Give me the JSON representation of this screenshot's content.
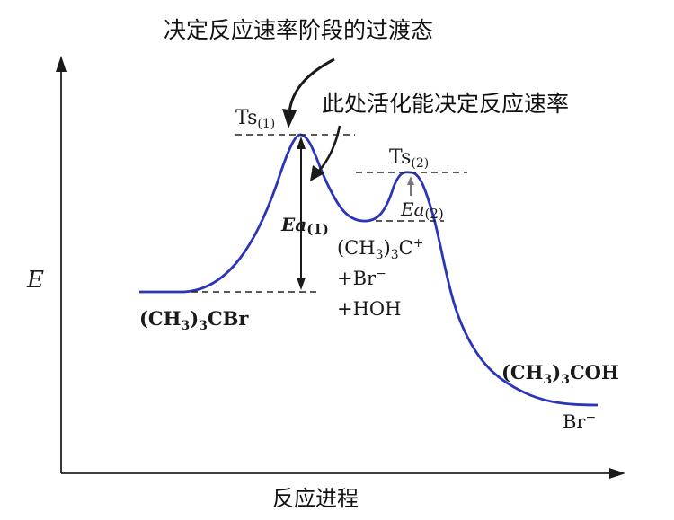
{
  "labels": {
    "title_ts_note": "决定反应速率阶段的过渡态",
    "activation_note": "此处活化能决定反应速率",
    "y_axis": "E",
    "x_axis": "反应进程",
    "ts1": "Ts",
    "ts1_sub": "(1)",
    "ts2": "Ts",
    "ts2_sub": "(2)",
    "ea1": "Ea",
    "ea1_sub": "(1)",
    "ea2": "Ea",
    "ea2_sub": "(2)",
    "reactant": "(CH3)3CBr",
    "intermediate_line1": "(CH3)3C+",
    "intermediate_line2": "+Br−",
    "intermediate_line3": "+HOH",
    "product": "(CH3)3COH",
    "product_byproduct": "Br−"
  },
  "colors": {
    "curve": "#2a35b8",
    "ink": "#1a1a1a",
    "arrow_gray": "#777777"
  }
}
